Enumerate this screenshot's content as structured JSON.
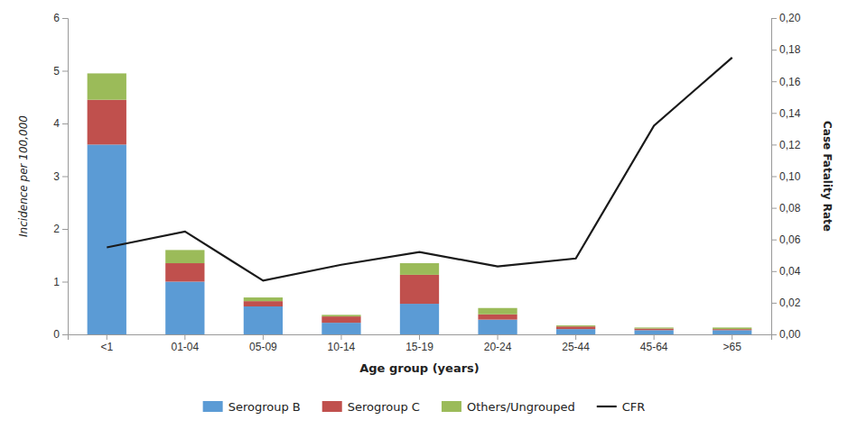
{
  "chart_data": {
    "type": "bar",
    "stacked": true,
    "grid": false,
    "legend": "bottom",
    "categories": [
      "<1",
      "01-04",
      "05-09",
      "10-14",
      "15-19",
      "20-24",
      "25-44",
      "45-64",
      ">65"
    ],
    "xlabel": "Age group (years)",
    "ylabel": "Incidence per 100,000",
    "y2label": "Case Fatality Rate",
    "ylim": [
      0,
      6
    ],
    "yticks": [
      0,
      1,
      2,
      3,
      4,
      5,
      6
    ],
    "y2lim": [
      0,
      0.2
    ],
    "y2ticks": [
      {
        "value": 0.0,
        "label": "0,00"
      },
      {
        "value": 0.02,
        "label": "0,02"
      },
      {
        "value": 0.04,
        "label": "0,04"
      },
      {
        "value": 0.06,
        "label": "0,06"
      },
      {
        "value": 0.08,
        "label": "0,08"
      },
      {
        "value": 0.1,
        "label": "0,10"
      },
      {
        "value": 0.12,
        "label": "0,12"
      },
      {
        "value": 0.14,
        "label": "0,14"
      },
      {
        "value": 0.16,
        "label": "0,16"
      },
      {
        "value": 0.18,
        "label": "0,18"
      },
      {
        "value": 0.2,
        "label": "0,20"
      }
    ],
    "series": [
      {
        "name": "Serogroup B",
        "type": "bar",
        "color": "#5B9BD5",
        "values": [
          3.6,
          1.0,
          0.53,
          0.22,
          0.58,
          0.28,
          0.1,
          0.08,
          0.08
        ]
      },
      {
        "name": "Serogroup C",
        "type": "bar",
        "color": "#C0504D",
        "values": [
          0.85,
          0.35,
          0.1,
          0.12,
          0.55,
          0.1,
          0.05,
          0.03,
          0.02
        ]
      },
      {
        "name": "Others/Ungrouped",
        "type": "bar",
        "color": "#9BBB59",
        "values": [
          0.5,
          0.25,
          0.07,
          0.03,
          0.22,
          0.12,
          0.02,
          0.02,
          0.03
        ]
      },
      {
        "name": "CFR",
        "type": "line",
        "axis": "y2",
        "color": "#1A1A1A",
        "values": [
          0.055,
          0.065,
          0.034,
          0.044,
          0.052,
          0.043,
          0.048,
          0.132,
          0.175
        ]
      }
    ]
  }
}
